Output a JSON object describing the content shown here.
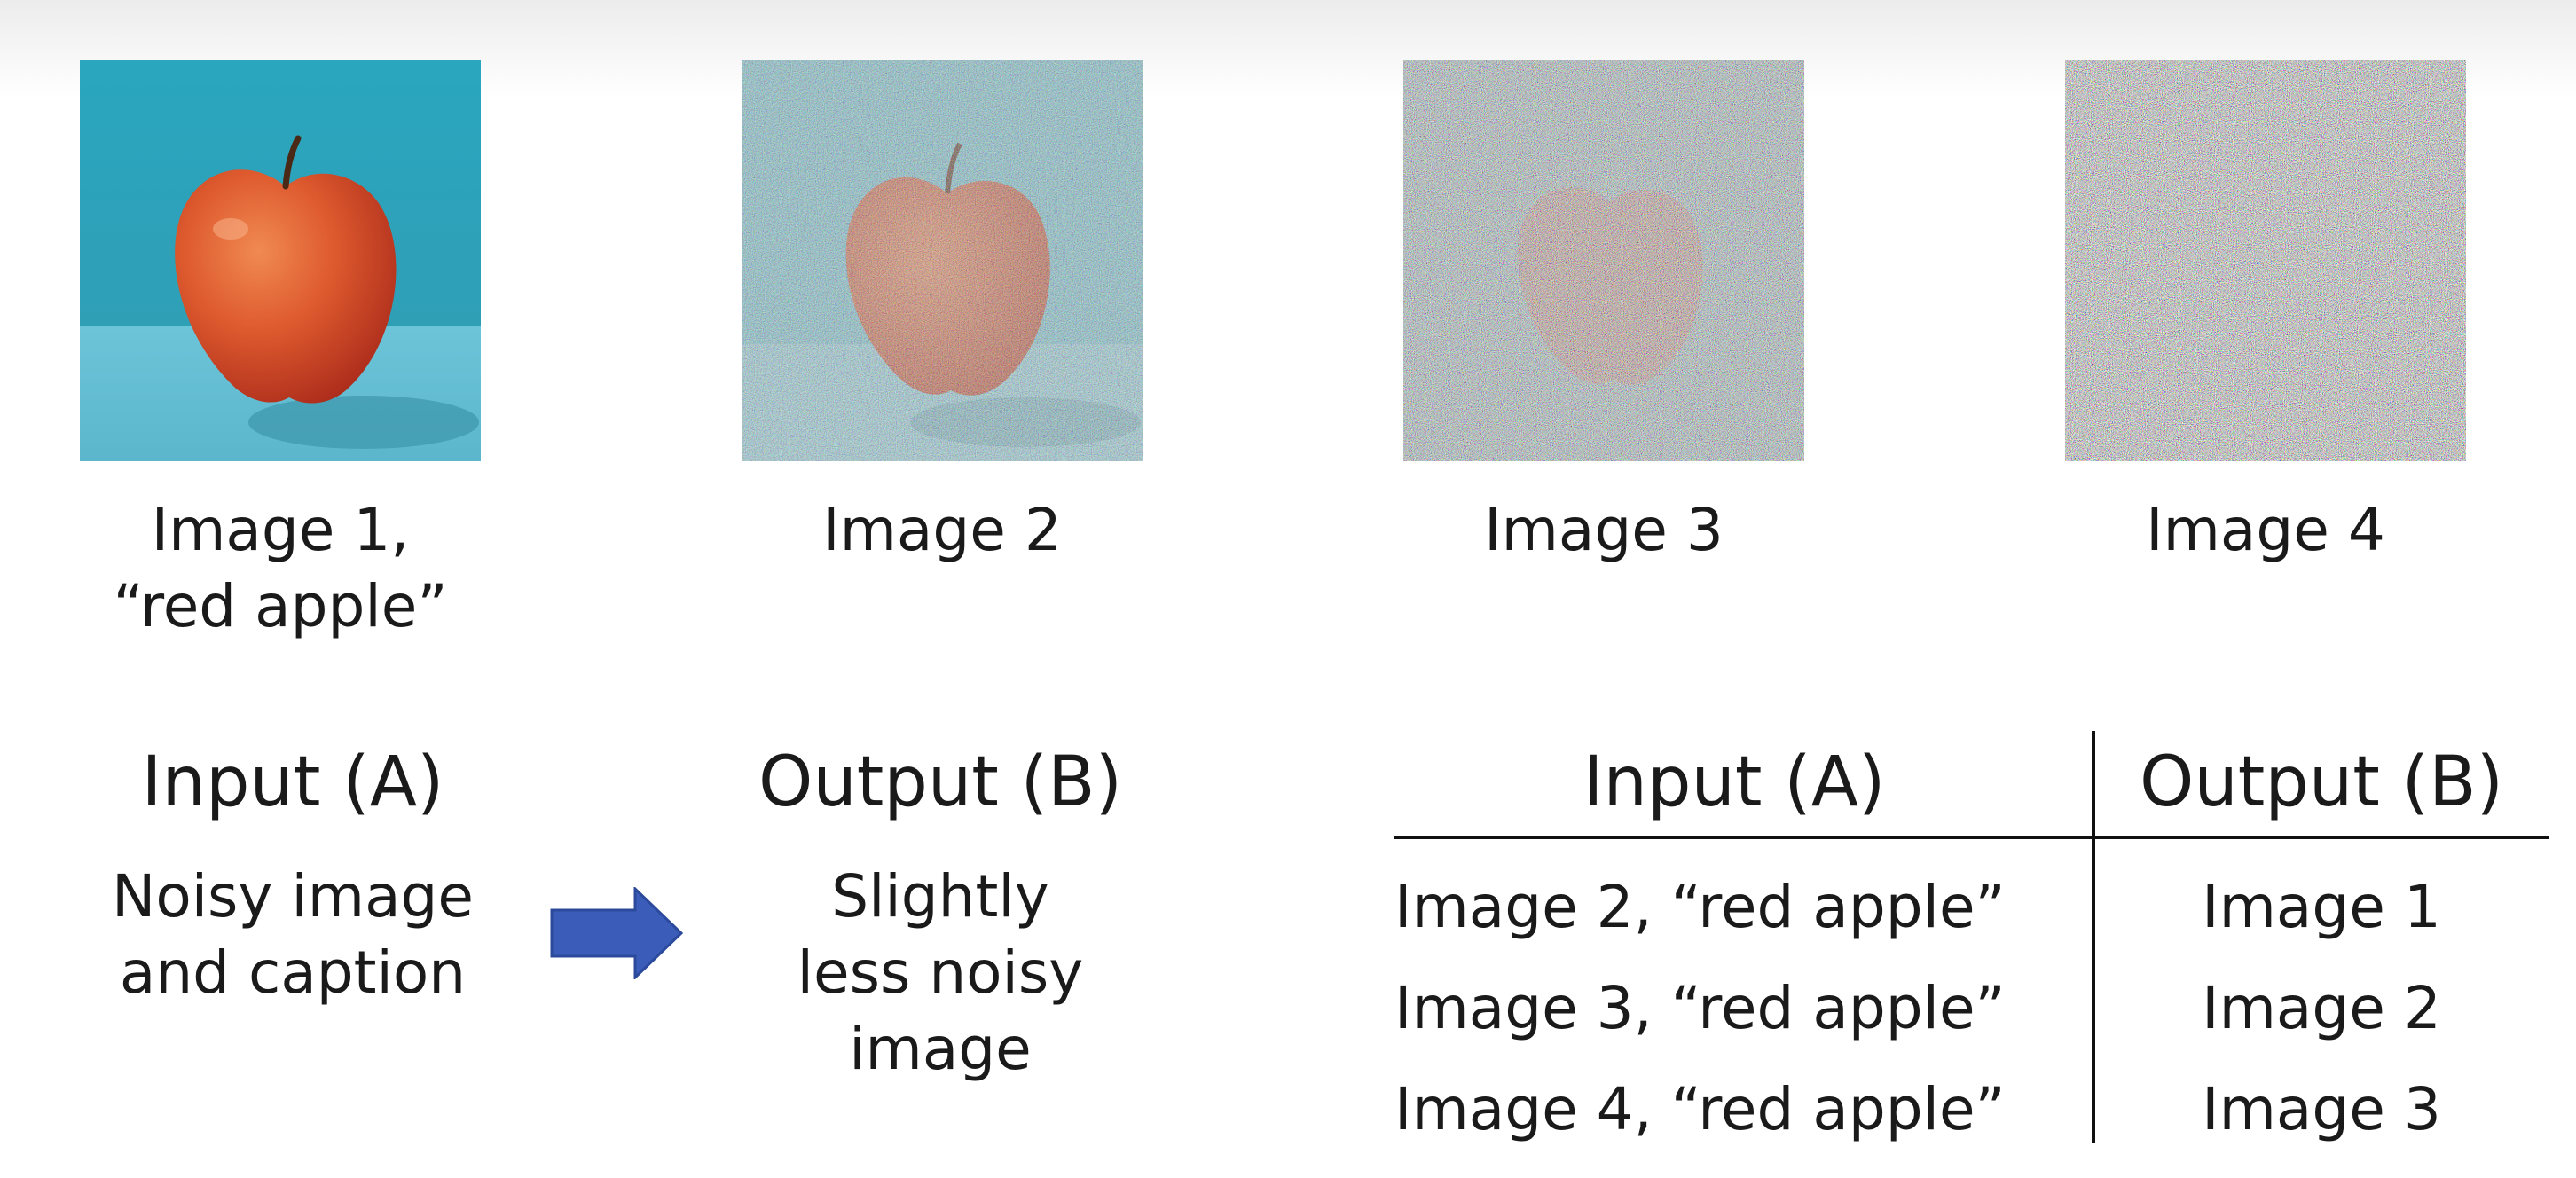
{
  "images": [
    {
      "label": "Image 1,",
      "label2": "“red apple”"
    },
    {
      "label": "Image 2"
    },
    {
      "label": "Image 3"
    },
    {
      "label": "Image 4"
    }
  ],
  "left_panel": {
    "input_heading": "Input (A)",
    "input_desc": [
      "Noisy image",
      "and caption"
    ],
    "output_heading": "Output (B)",
    "output_desc": [
      "Slightly",
      "less noisy",
      "image"
    ]
  },
  "table": {
    "headers": [
      "Input (A)",
      "Output (B)"
    ],
    "rows": [
      {
        "input": "Image 2, “red apple”",
        "output": "Image 1"
      },
      {
        "input": "Image 3, “red apple”",
        "output": "Image 2"
      },
      {
        "input": "Image 4, “red apple”",
        "output": "Image 3"
      }
    ]
  },
  "colors": {
    "arrow": "#3b5cb8",
    "background_teal": "#2fa8bd",
    "apple_red": "#d9482a"
  }
}
